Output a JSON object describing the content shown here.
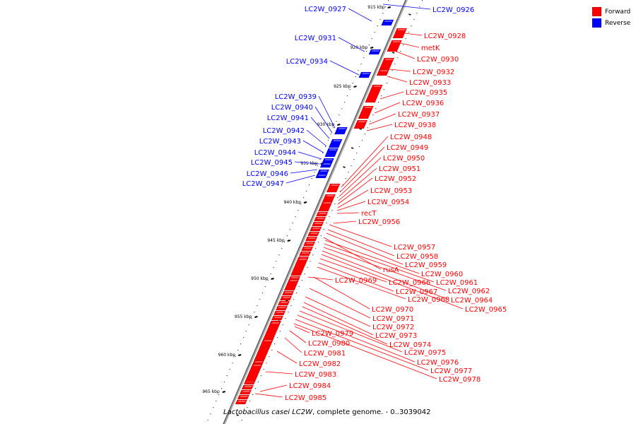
{
  "legend": {
    "forward_label": "Forward",
    "reverse_label": "Reverse",
    "forward_color": "#ff0000",
    "reverse_color": "#0000ff"
  },
  "caption": {
    "organism": "Lactobacillus casei LC2W",
    "rest": ", complete genome. - 0..3039042"
  },
  "kbp_marks": [
    "915 kbp",
    "920 kbp",
    "925 kbp",
    "930 kbp",
    "935 kbp",
    "940 kbp",
    "945 kbp",
    "950 kbp",
    "955 kbp",
    "960 kbp",
    "965 kbp"
  ],
  "genes_reverse": [
    "LC2W_0926",
    "LC2W_0927",
    "LC2W_0931",
    "LC2W_0934",
    "LC2W_0939",
    "LC2W_0940",
    "LC2W_0941",
    "LC2W_0942",
    "LC2W_0943",
    "LC2W_0944",
    "LC2W_0945",
    "LC2W_0946",
    "LC2W_0947"
  ],
  "genes_forward": [
    "LC2W_0928",
    "metK",
    "LC2W_0930",
    "LC2W_0932",
    "LC2W_0933",
    "LC2W_0935",
    "LC2W_0936",
    "LC2W_0937",
    "LC2W_0938",
    "LC2W_0948",
    "LC2W_0949",
    "LC2W_0950",
    "LC2W_0951",
    "LC2W_0952",
    "LC2W_0953",
    "LC2W_0954",
    "recT",
    "LC2W_0956",
    "LC2W_0957",
    "LC2W_0958",
    "LC2W_0959",
    "rusA",
    "LC2W_0960",
    "LC2W_0961",
    "LC2W_0962",
    "LC2W_0964",
    "LC2W_0965",
    "LC2W_0966",
    "LC2W_0967",
    "LC2W_0968",
    "LC2W_0969",
    "LC2W_0970",
    "LC2W_0971",
    "LC2W_0972",
    "LC2W_0973",
    "LC2W_0974",
    "LC2W_0975",
    "LC2W_0976",
    "LC2W_0977",
    "LC2W_0978",
    "LC2W_0979",
    "LC2W_0980",
    "LC2W_0981",
    "LC2W_0982",
    "LC2W_0983",
    "LC2W_0984",
    "LC2W_0985"
  ]
}
